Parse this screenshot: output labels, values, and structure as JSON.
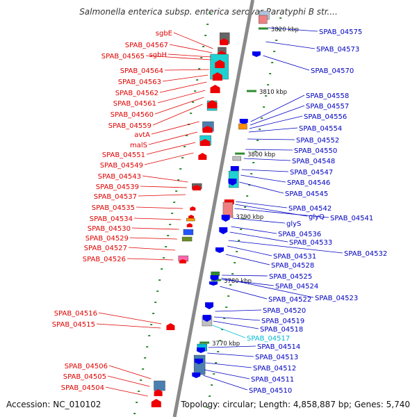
{
  "title": "Salmonella enterica subsp. enterica serovar Paratyphi B str....",
  "accession": "Accession: NC_010102",
  "summary": "Topology: circular; Length: 4,858,887 bp; Genes: 5,740",
  "colors": {
    "left_label": "#e00000",
    "right_label": "#0000c0",
    "highlight_label": "#00bcd4",
    "backbone": "#8a8a8a",
    "tick": "#2e8b2e",
    "forward_arrow": "#ee0000",
    "reverse_arrow": "#0000ee"
  },
  "scale_labels": [
    "3820 kbp",
    "3810 kbp",
    "3800 kbp",
    "3790 kbp",
    "3780 kbp",
    "3770 kbp"
  ],
  "left_labels": [
    "sgbE",
    "SPAB_04567",
    "sgbH",
    "SPAB_04565",
    "SPAB_04564",
    "SPAB_04563",
    "SPAB_04562",
    "SPAB_04561",
    "SPAB_04560",
    "SPAB_04559",
    "avtA",
    "malS",
    "SPAB_04551",
    "SPAB_04549",
    "SPAB_04543",
    "SPAB_04539",
    "SPAB_04537",
    "SPAB_04535",
    "SPAB_04534",
    "SPAB_04530",
    "SPAB_04529",
    "SPAB_04527",
    "SPAB_04526",
    "SPAB_04516",
    "SPAB_04515",
    "SPAB_04506",
    "SPAB_04505",
    "SPAB_04504"
  ],
  "right_labels": [
    "SPAB_04575",
    "SPAB_04573",
    "SPAB_04570",
    "SPAB_04558",
    "SPAB_04557",
    "SPAB_04556",
    "SPAB_04554",
    "SPAB_04552",
    "SPAB_04550",
    "SPAB_04548",
    "SPAB_04547",
    "SPAB_04546",
    "SPAB_04545",
    "SPAB_04542",
    "glyQ",
    "SPAB_04541",
    "glyS",
    "SPAB_04536",
    "SPAB_04533",
    "SPAB_04532",
    "SPAB_04531",
    "SPAB_04528",
    "SPAB_04525",
    "SPAB_04524",
    "SPAB_04523",
    "SPAB_04522",
    "SPAB_04520",
    "SPAB_04519",
    "SPAB_04518",
    "SPAB_04517",
    "SPAB_04514",
    "SPAB_04513",
    "SPAB_04512",
    "SPAB_04511",
    "SPAB_04510"
  ],
  "highlighted_label": "SPAB_04517"
}
